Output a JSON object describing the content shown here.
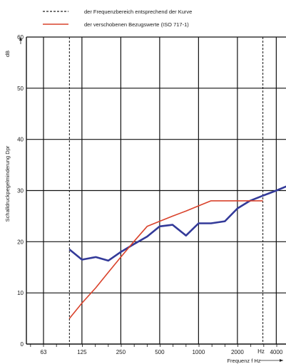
{
  "legend": {
    "dashed_label": "der Frequenzbereich entsprechend der Kurve",
    "red_label": "der verschobenen Bezugswerte (ISO 717-1)"
  },
  "chart_data": {
    "type": "line",
    "ylabel": "Schalldruckpegelminderung  Dpr",
    "yunit": "dB",
    "xlabel": "Frequenz  f  Hz",
    "xunit": "Hz",
    "x_ticks": [
      "63",
      "125",
      "250",
      "500",
      "1000",
      "2000",
      "4000"
    ],
    "y_ticks": [
      0,
      10,
      20,
      30,
      40,
      50,
      60
    ],
    "ylim": [
      0,
      60
    ],
    "x_scale": "log",
    "grid": true,
    "frequency_range_marks": [
      100,
      3150
    ],
    "series": [
      {
        "color": "#333a99",
        "x": [
          100,
          125,
          160,
          200,
          250,
          315,
          400,
          500,
          630,
          800,
          1000,
          1250,
          1600,
          2000,
          2500,
          3150,
          4000,
          5000
        ],
        "y": [
          18.5,
          16.5,
          17.0,
          16.3,
          18.0,
          19.5,
          21.0,
          23.0,
          23.3,
          21.2,
          23.6,
          23.6,
          24.0,
          26.5,
          28.0,
          29.0,
          30.0,
          31.0
        ]
      },
      {
        "color": "#d9422b",
        "x": [
          100,
          125,
          160,
          200,
          250,
          315,
          400,
          500,
          630,
          800,
          1000,
          1250,
          1600,
          2000,
          2500,
          3150
        ],
        "y": [
          5,
          8,
          11,
          14,
          17,
          20,
          23,
          24,
          25,
          26,
          27,
          28,
          28,
          28,
          28,
          28
        ]
      }
    ]
  }
}
